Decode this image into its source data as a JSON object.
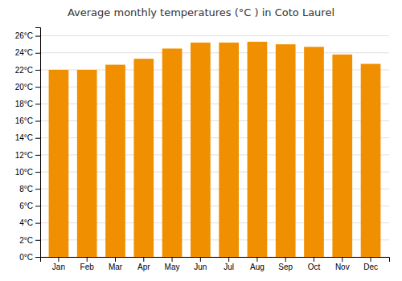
{
  "chart_data": {
    "type": "bar",
    "title": "Average monthly temperatures (°C ) in Coto Laurel",
    "categories": [
      "Jan",
      "Feb",
      "Mar",
      "Apr",
      "May",
      "Jun",
      "Jul",
      "Aug",
      "Sep",
      "Oct",
      "Nov",
      "Dec"
    ],
    "values": [
      22.0,
      22.0,
      22.6,
      23.3,
      24.5,
      25.2,
      25.2,
      25.3,
      25.0,
      24.7,
      23.8,
      22.7
    ],
    "color": "#F09000",
    "ylim": [
      0,
      27
    ],
    "yticks": [
      {
        "value": 0,
        "label": "0°C"
      },
      {
        "value": 2,
        "label": "2°C"
      },
      {
        "value": 4,
        "label": "4°C"
      },
      {
        "value": 6,
        "label": "6°C"
      },
      {
        "value": 8,
        "label": "8°C"
      },
      {
        "value": 10,
        "label": "10°C"
      },
      {
        "value": 12,
        "label": "12°C"
      },
      {
        "value": 14,
        "label": "14°C"
      },
      {
        "value": 16,
        "label": "16°C"
      },
      {
        "value": 18,
        "label": "18°C"
      },
      {
        "value": 20,
        "label": "20°C"
      },
      {
        "value": 22,
        "label": "22°C"
      },
      {
        "value": 24,
        "label": "24°C"
      },
      {
        "value": 26,
        "label": "26°C"
      }
    ],
    "grid": true
  }
}
